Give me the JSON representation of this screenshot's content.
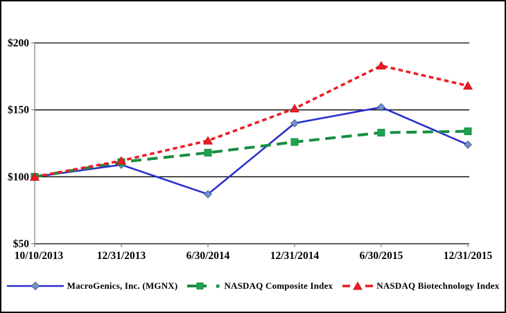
{
  "chart_data": {
    "type": "line",
    "title": "",
    "x_labels": [
      "10/10/2013",
      "12/31/2013",
      "6/30/2014",
      "12/31/2014",
      "6/30/2015",
      "12/31/2015"
    ],
    "y_ticks": [
      "$200",
      "$150",
      "$100",
      "$50"
    ],
    "y_tick_values": [
      200,
      150,
      100,
      50
    ],
    "ylim": [
      50,
      200
    ],
    "grid": "horizontal-only",
    "legend_position": "bottom",
    "series": [
      {
        "name": "MacroGenics, Inc. (MGNX)",
        "marker": "diamond",
        "line_style": "solid",
        "line_color": "#2A2FC9",
        "marker_fill": "#7193C7",
        "marker_stroke": "#3F5C9B",
        "line_width": 2.6,
        "values": [
          100,
          109,
          87,
          140,
          152,
          124
        ]
      },
      {
        "name": "NASDAQ Composite Index",
        "marker": "square",
        "line_style": "long-dash",
        "line_color": "#168D42",
        "marker_fill": "#1FA24D",
        "marker_stroke": "#168D42",
        "line_width": 4,
        "values": [
          100,
          111,
          118,
          126,
          133,
          134
        ]
      },
      {
        "name": "NASDAQ Biotechnology Index",
        "marker": "triangle",
        "line_style": "short-dash",
        "line_color": "#ED1C24",
        "marker_fill": "#ED1C24",
        "marker_stroke": "#C8121A",
        "line_width": 3.6,
        "values": [
          100,
          112,
          127,
          151,
          183,
          168
        ]
      }
    ]
  },
  "colors": {
    "background": "#FFFFFF",
    "frame_border": "#000000",
    "gridline": "#000000",
    "axis_line": "#808080"
  }
}
